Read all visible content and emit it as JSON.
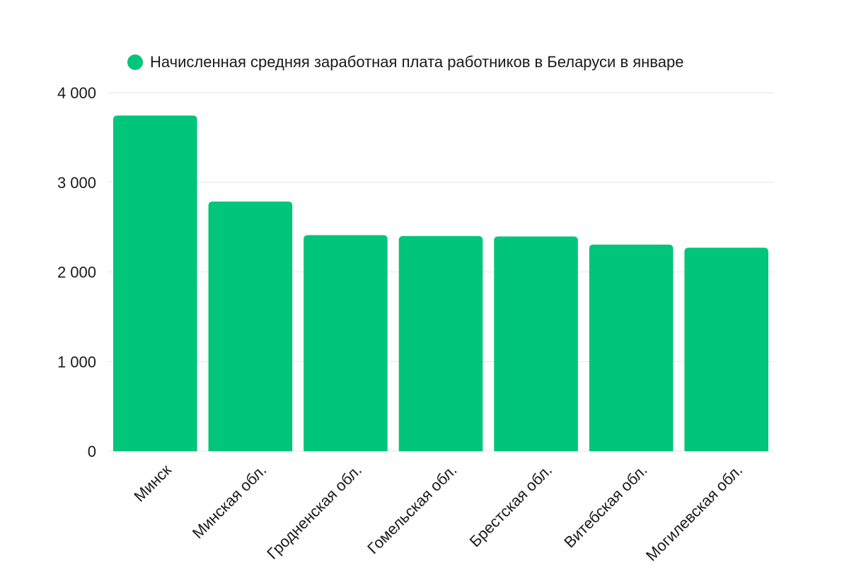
{
  "chart_data": {
    "type": "bar",
    "categories": [
      "Минск",
      "Минская обл.",
      "Гродненская обл.",
      "Гомельская обл.",
      "Брестская обл.",
      "Витебская обл.",
      "Могилевская обл."
    ],
    "series": [
      {
        "name": "Начисленная средняя заработная плата работников в Беларуси в январе",
        "values": [
          3745,
          2785,
          2410,
          2400,
          2395,
          2305,
          2270
        ],
        "color": "#00c57b"
      }
    ],
    "ylim": [
      0,
      4000
    ],
    "yticks": [
      0,
      1000,
      2000,
      3000,
      4000
    ],
    "ytick_labels": [
      "0",
      "1 000",
      "2 000",
      "3 000",
      "4 000"
    ],
    "grid": true,
    "legend_position": "top-center"
  }
}
